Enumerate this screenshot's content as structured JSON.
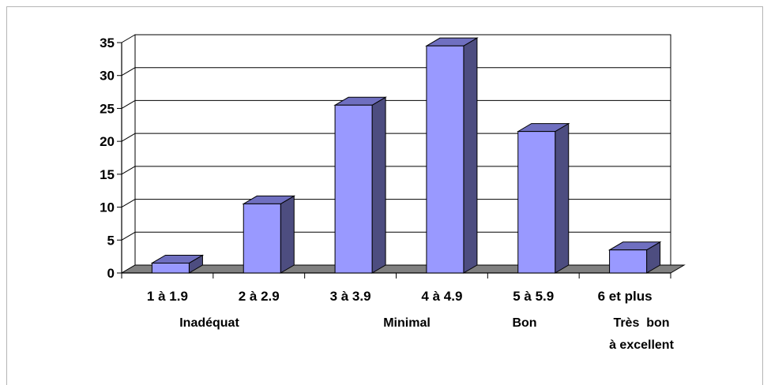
{
  "chart_data": {
    "type": "bar",
    "categories": [
      "1 à 1.9",
      "2 à 2.9",
      "3 à 3.9",
      "4 à 4.9",
      "5 à 5.9",
      "6 et plus"
    ],
    "values": [
      1.5,
      10.5,
      25.5,
      34.5,
      21.5,
      3.5
    ],
    "ylim": [
      0,
      35
    ],
    "yticks": [
      0,
      5,
      10,
      15,
      20,
      25,
      30,
      35
    ],
    "grid": true,
    "legend": "none",
    "style": "3d",
    "group_labels": [
      {
        "lines": [
          "Inadéquat"
        ]
      },
      {
        "lines": [
          "Minimal"
        ]
      },
      {
        "lines": [
          "Bon"
        ]
      },
      {
        "lines": [
          "Très  bon",
          "à excellent"
        ]
      }
    ],
    "colors": {
      "bar_front": "#9999ff",
      "bar_side": "#4d4d80",
      "bar_top": "#6f6fc0",
      "floor": "#808080",
      "grid": "#000000"
    }
  }
}
